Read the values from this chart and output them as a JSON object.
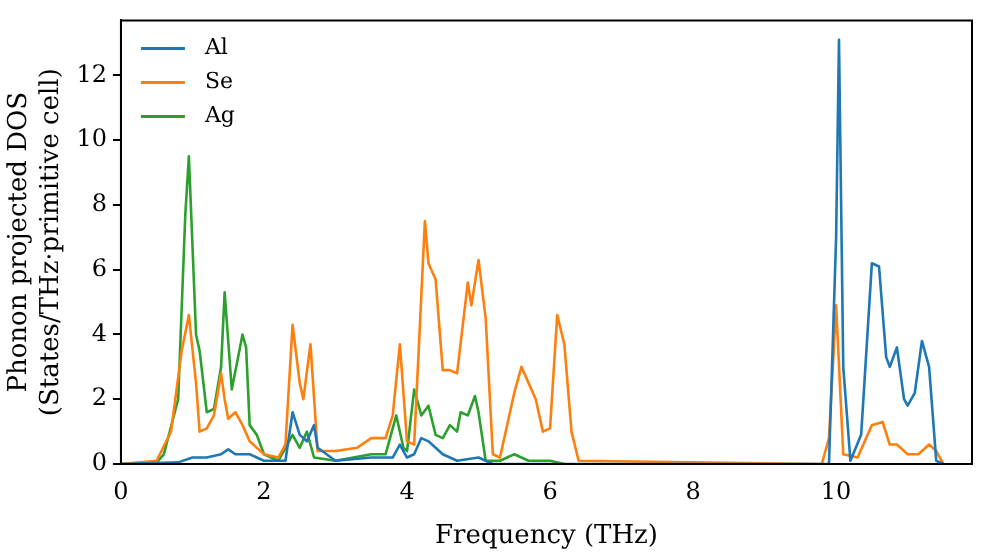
{
  "chart_data": {
    "type": "line",
    "xlabel": "Frequency (THz)",
    "ylabel": "Phonon projected DOS\n(States/THz·primitive cell)",
    "xlim": [
      0,
      11.9
    ],
    "xticks": [
      0,
      2,
      4,
      6,
      8,
      10
    ],
    "ylim": [
      0,
      13.7
    ],
    "yticks": [
      0,
      2,
      4,
      6,
      8,
      10,
      12
    ],
    "legend": "top left",
    "grid": false,
    "marker": "none",
    "line_style": "solid",
    "series": [
      {
        "name": "Al",
        "color": "#1f77b4",
        "x": [
          0,
          0.8,
          1.0,
          1.2,
          1.4,
          1.5,
          1.6,
          1.8,
          2.0,
          2.3,
          2.4,
          2.5,
          2.6,
          2.7,
          2.75,
          3.0,
          3.5,
          3.8,
          3.9,
          4.0,
          4.1,
          4.2,
          4.3,
          4.5,
          4.7,
          5.0,
          5.2,
          9.9,
          10.0,
          10.04,
          10.1,
          10.2,
          10.35,
          10.5,
          10.6,
          10.7,
          10.75,
          10.85,
          10.95,
          11.0,
          11.1,
          11.2,
          11.3,
          11.4,
          11.5
        ],
        "values": [
          0,
          0.05,
          0.2,
          0.2,
          0.3,
          0.45,
          0.3,
          0.3,
          0.1,
          0.1,
          1.6,
          0.9,
          0.7,
          1.2,
          0.5,
          0.1,
          0.2,
          0.2,
          0.6,
          0.2,
          0.3,
          0.8,
          0.7,
          0.3,
          0.1,
          0.2,
          0,
          0,
          7,
          13.1,
          3,
          0.1,
          0.9,
          6.2,
          6.1,
          3.3,
          3.0,
          3.6,
          2.0,
          1.8,
          2.2,
          3.8,
          3.0,
          0.1,
          0
        ]
      },
      {
        "name": "Se",
        "color": "#ff7f0e",
        "x": [
          0,
          0.5,
          0.7,
          0.85,
          0.95,
          1.05,
          1.1,
          1.2,
          1.3,
          1.4,
          1.45,
          1.5,
          1.6,
          1.7,
          1.8,
          2.0,
          2.2,
          2.3,
          2.4,
          2.5,
          2.55,
          2.65,
          2.75,
          3.0,
          3.3,
          3.5,
          3.7,
          3.8,
          3.9,
          4.0,
          4.1,
          4.25,
          4.3,
          4.4,
          4.5,
          4.6,
          4.7,
          4.85,
          4.9,
          5.0,
          5.1,
          5.2,
          5.3,
          5.5,
          5.6,
          5.8,
          5.9,
          6.0,
          6.1,
          6.2,
          6.3,
          6.4,
          9.8,
          9.9,
          10.0,
          10.1,
          10.3,
          10.5,
          10.65,
          10.75,
          10.85,
          11.0,
          11.15,
          11.3,
          11.4,
          11.5
        ],
        "values": [
          0,
          0.1,
          1,
          3.5,
          4.6,
          2.5,
          1.0,
          1.1,
          1.5,
          2.8,
          2.0,
          1.4,
          1.6,
          1.2,
          0.7,
          0.3,
          0.2,
          0.6,
          4.3,
          2.5,
          2.0,
          3.7,
          0.4,
          0.4,
          0.5,
          0.8,
          0.8,
          1.5,
          3.7,
          0.7,
          0.6,
          7.5,
          6.2,
          5.7,
          2.9,
          2.9,
          2.8,
          5.6,
          4.9,
          6.3,
          4.5,
          0.3,
          0.2,
          2.2,
          3.0,
          2.0,
          1.0,
          1.1,
          4.6,
          3.7,
          1.0,
          0.1,
          0,
          0.8,
          4.9,
          0.3,
          0.2,
          1.2,
          1.3,
          0.6,
          0.6,
          0.3,
          0.3,
          0.6,
          0.4,
          0
        ]
      },
      {
        "name": "Ag",
        "color": "#2ca02c",
        "x": [
          0,
          0.5,
          0.6,
          0.8,
          0.9,
          0.95,
          1.05,
          1.1,
          1.2,
          1.3,
          1.4,
          1.45,
          1.55,
          1.7,
          1.75,
          1.8,
          1.9,
          2.0,
          2.2,
          2.4,
          2.5,
          2.6,
          2.7,
          3.0,
          3.5,
          3.7,
          3.85,
          3.95,
          4.0,
          4.1,
          4.2,
          4.3,
          4.4,
          4.5,
          4.6,
          4.7,
          4.75,
          4.85,
          4.95,
          5.0,
          5.1,
          5.3,
          5.5,
          5.7,
          6.0,
          6.2
        ],
        "values": [
          0,
          0.05,
          0.3,
          2,
          7.7,
          9.5,
          4,
          3.5,
          1.6,
          1.7,
          3,
          5.3,
          2.3,
          4,
          3.6,
          1.2,
          0.9,
          0.3,
          0.1,
          0.9,
          0.5,
          1.0,
          0.2,
          0.1,
          0.3,
          0.3,
          1.5,
          0.5,
          0.4,
          2.3,
          1.5,
          1.8,
          0.9,
          0.8,
          1.2,
          1.0,
          1.6,
          1.5,
          2.1,
          1.6,
          0.1,
          0.1,
          0.3,
          0.1,
          0.1,
          0
        ]
      }
    ]
  }
}
